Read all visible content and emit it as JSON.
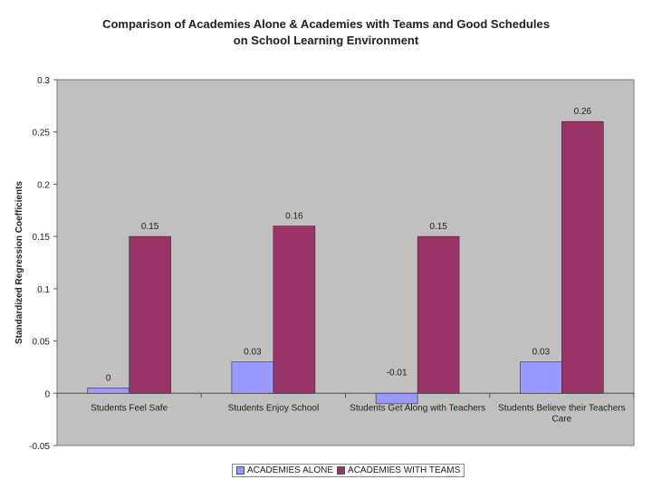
{
  "chart_data": {
    "type": "bar",
    "title_lines": [
      "Comparison of Academies Alone & Academies with Teams and Good Schedules",
      "on School Learning Environment"
    ],
    "xlabel": "",
    "ylabel": "Standardized Regression Coefficients",
    "ylim": [
      -0.05,
      0.3
    ],
    "yticks": [
      "0.3",
      "0.25",
      "0.2",
      "0.15",
      "0.1",
      "0.05",
      "0",
      "-0.05"
    ],
    "ytick_values": [
      0.3,
      0.25,
      0.2,
      0.15,
      0.1,
      0.05,
      0,
      -0.05
    ],
    "grid": false,
    "legend_position": "bottom",
    "categories": [
      "Students Feel Safe",
      "Students Enjoy School",
      "Students Get Along with Teachers",
      "Students Believe their Teachers Care"
    ],
    "series": [
      {
        "name": "ACADEMIES ALONE",
        "color": "#9999ff",
        "values": [
          0.005,
          0.03,
          -0.01,
          0.03
        ],
        "labels": [
          "0",
          "0.03",
          "-0.01",
          "0.03"
        ]
      },
      {
        "name": "ACADEMIES WITH TEAMS",
        "color": "#993366",
        "values": [
          0.15,
          0.16,
          0.15,
          0.26
        ],
        "labels": [
          "0.15",
          "0.16",
          "0.15",
          "0.26"
        ]
      }
    ],
    "plot_background": "#c0c0c0"
  }
}
